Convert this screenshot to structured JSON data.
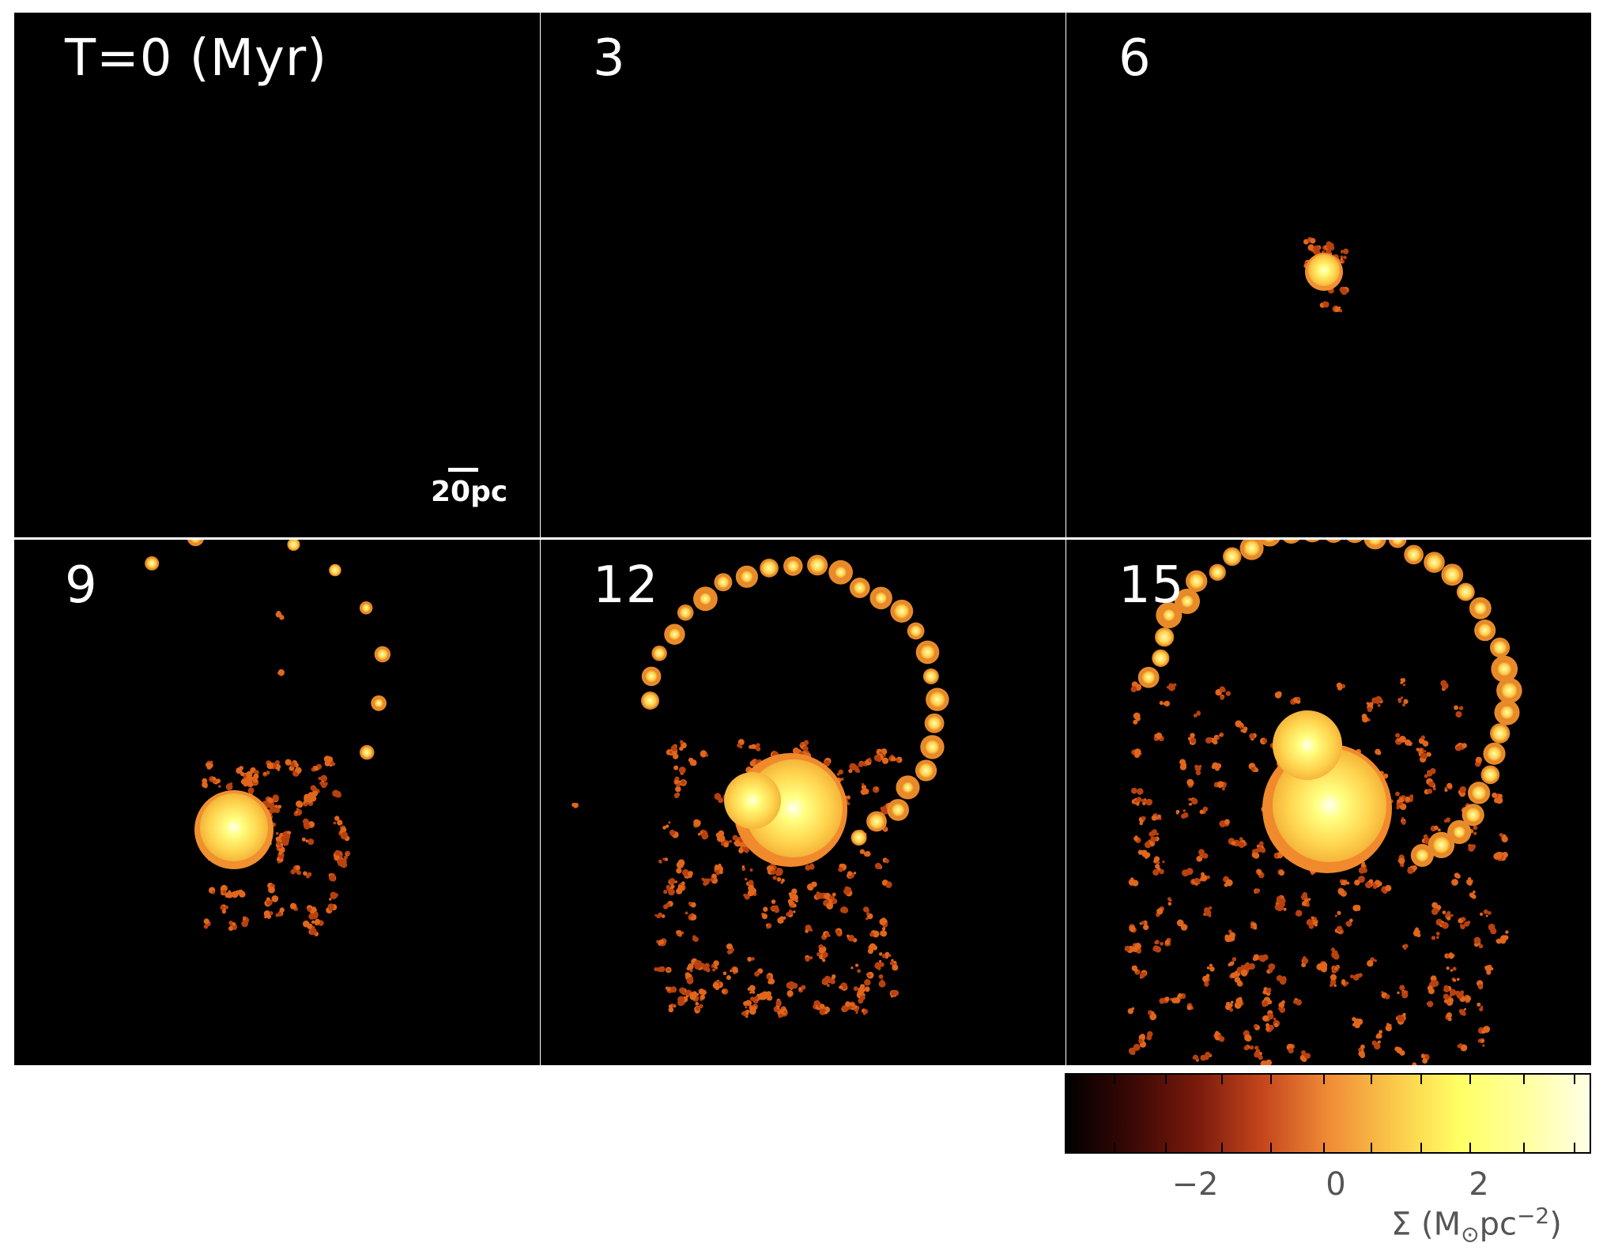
{
  "panels": [
    {
      "label": "T=0 (Myr)"
    },
    {
      "label": "3"
    },
    {
      "label": "6"
    },
    {
      "label": "9"
    },
    {
      "label": "12"
    },
    {
      "label": "15"
    }
  ],
  "scalebar": {
    "label": "20pc"
  },
  "colorbar": {
    "tick_labels": [
      "−2",
      "0",
      "2"
    ],
    "title_prefix": "Σ (M",
    "title_sub": "⊙",
    "title_mid": "pc",
    "title_sup": "−2",
    "title_suffix": ")",
    "colors": [
      "#000000",
      "#3a0805",
      "#7a1a0c",
      "#c4461d",
      "#f08a36",
      "#fbc84a",
      "#ffff63",
      "#ffff9e",
      "#ffffe6"
    ]
  }
}
